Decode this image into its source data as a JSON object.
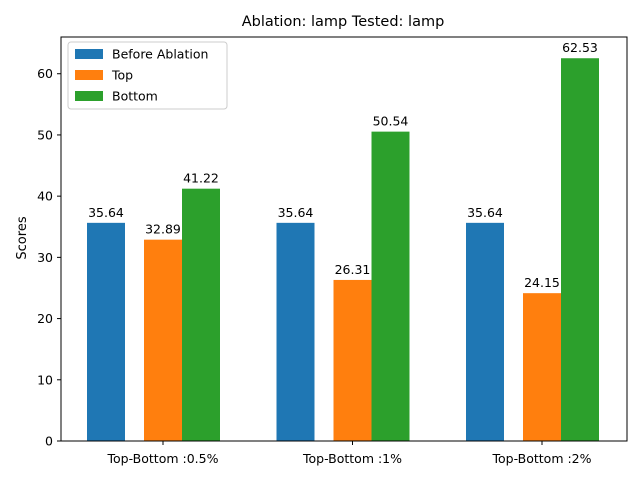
{
  "chart_data": {
    "type": "bar",
    "title": "Ablation: lamp Tested: lamp",
    "xlabel": "",
    "ylabel": "Scores",
    "ylim": [
      0,
      66
    ],
    "yticks": [
      0,
      10,
      20,
      30,
      40,
      50,
      60
    ],
    "categories": [
      "Top-Bottom :0.5%",
      "Top-Bottom :1%",
      "Top-Bottom :2%"
    ],
    "series": [
      {
        "name": "Before Ablation",
        "color": "#1f77b4",
        "values": [
          35.64,
          35.64,
          35.64
        ]
      },
      {
        "name": "Top",
        "color": "#ff7f0e",
        "values": [
          32.89,
          26.31,
          24.15
        ]
      },
      {
        "name": "Bottom",
        "color": "#2ca02c",
        "values": [
          41.22,
          50.54,
          62.53
        ]
      }
    ],
    "data_labels": [
      [
        "35.64",
        "35.64",
        "35.64"
      ],
      [
        "32.89",
        "26.31",
        "24.15"
      ],
      [
        "41.22",
        "50.54",
        "62.53"
      ]
    ],
    "legend_position": "top-left",
    "grid": false
  }
}
